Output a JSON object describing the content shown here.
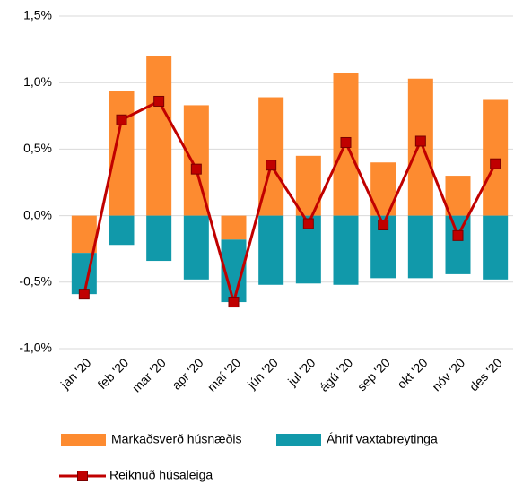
{
  "chart_data": {
    "type": "bar",
    "categories": [
      "jan '20",
      "feb '20",
      "mar '20",
      "apr '20",
      "maí '20",
      "jún '20",
      "júl '20",
      "ágú '20",
      "sep '20",
      "okt '20",
      "nóv '20",
      "des '20"
    ],
    "series": [
      {
        "name": "Markaðsverð húsnæðis",
        "color": "#fd8b30",
        "type": "bar",
        "values": [
          -0.28,
          0.94,
          1.2,
          0.83,
          -0.18,
          0.89,
          0.45,
          1.07,
          0.4,
          1.03,
          0.3,
          0.87
        ]
      },
      {
        "name": "Áhrif vaxtabreytinga",
        "color": "#1199aa",
        "type": "bar",
        "values": [
          -0.31,
          -0.22,
          -0.34,
          -0.48,
          -0.47,
          -0.52,
          -0.51,
          -0.52,
          -0.47,
          -0.47,
          -0.44,
          -0.48
        ]
      },
      {
        "name": "Reiknuð húsaleiga",
        "color": "#c00000",
        "type": "line",
        "values": [
          -0.59,
          0.72,
          0.86,
          0.35,
          -0.65,
          0.38,
          -0.06,
          0.55,
          -0.07,
          0.56,
          -0.15,
          0.39
        ]
      }
    ],
    "ylim": [
      -1.0,
      1.5
    ],
    "yticks": [
      {
        "value": -1.0,
        "label": "-1,0%"
      },
      {
        "value": -0.5,
        "label": "-0,5%"
      },
      {
        "value": 0,
        "label": "0,0%"
      },
      {
        "value": 0.5,
        "label": "0,5%"
      },
      {
        "value": 1.0,
        "label": "1,0%"
      },
      {
        "value": 1.5,
        "label": "1,5%"
      }
    ],
    "grid": true
  }
}
